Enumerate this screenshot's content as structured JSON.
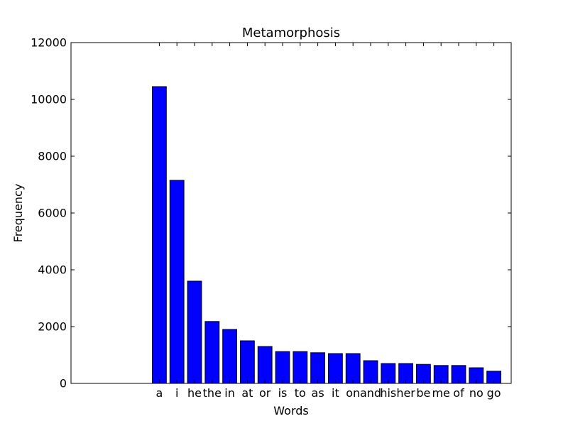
{
  "chart_data": {
    "type": "bar",
    "title": "Metamorphosis",
    "xlabel": "Words",
    "ylabel": "Frequency",
    "categories": [
      "a",
      "i",
      "he",
      "the",
      "in",
      "at",
      "or",
      "is",
      "to",
      "as",
      "it",
      "on",
      "and",
      "his",
      "her",
      "be",
      "me",
      "of",
      "no",
      "go"
    ],
    "values": [
      10450,
      7150,
      3600,
      2180,
      1900,
      1500,
      1300,
      1120,
      1120,
      1080,
      1050,
      1050,
      800,
      700,
      700,
      670,
      630,
      630,
      550,
      430
    ],
    "ylim": [
      0,
      12000
    ],
    "yticks": [
      "0",
      "2000",
      "4000",
      "6000",
      "8000",
      "10000",
      "12000"
    ],
    "grid": false,
    "bar_color": "#0000ff",
    "edge_color": "#000000"
  }
}
